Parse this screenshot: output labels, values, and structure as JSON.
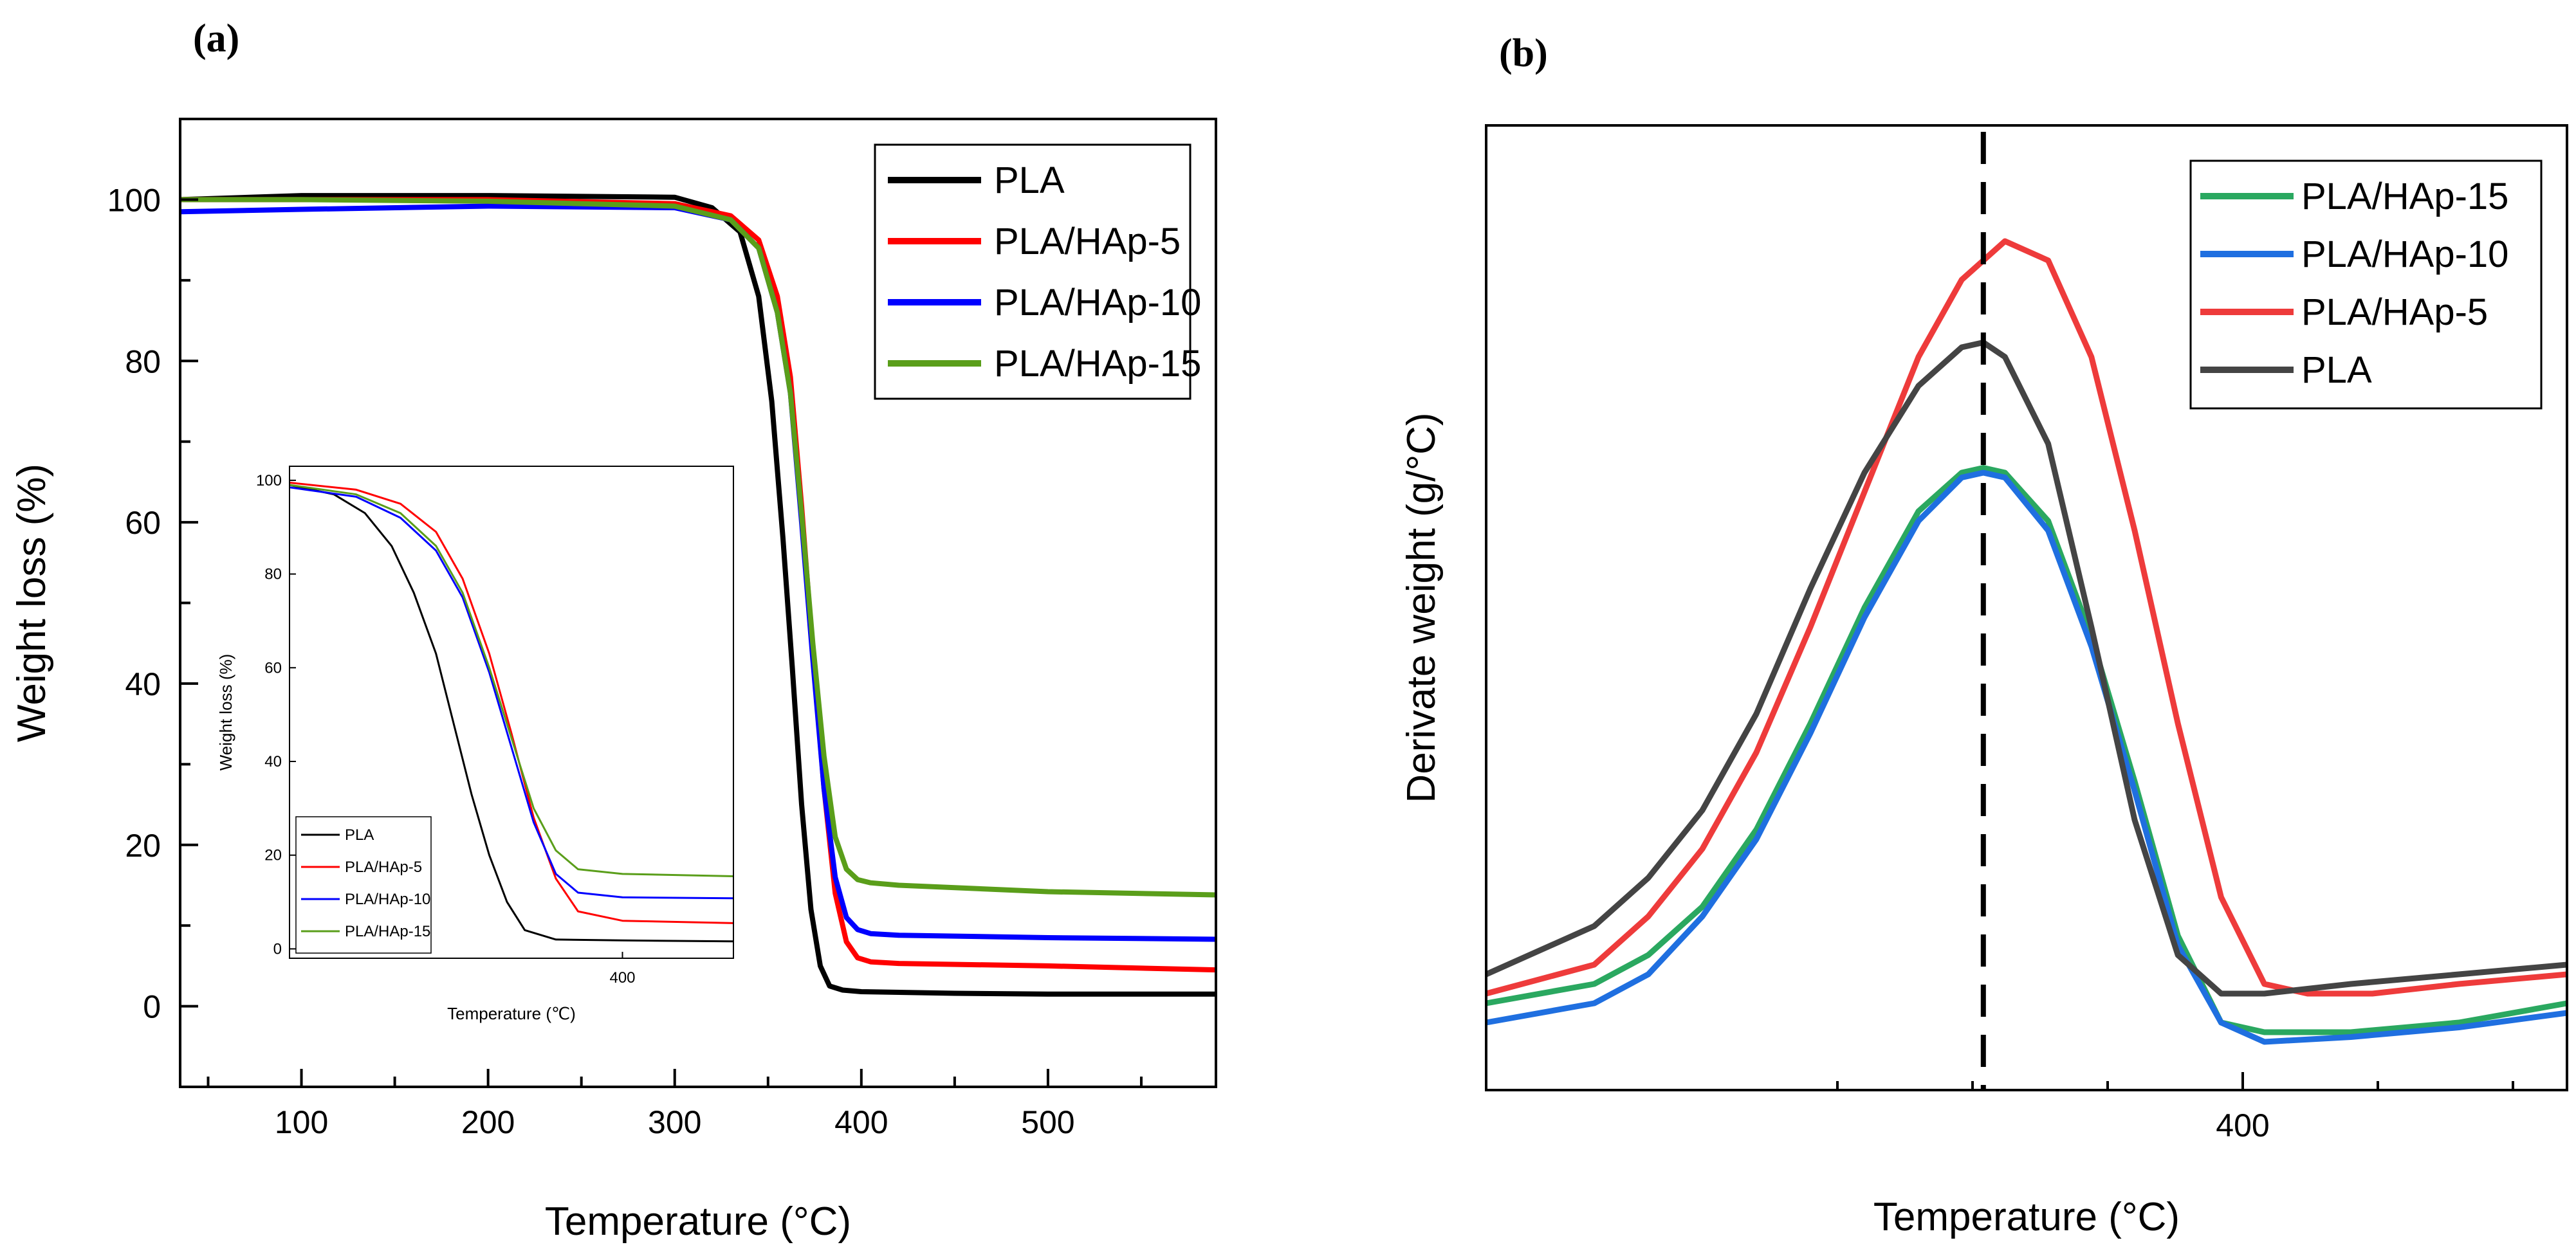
{
  "chart_data": [
    {
      "panel": "(a)",
      "type": "line",
      "title": "",
      "xlabel": "Temperature (°C)",
      "ylabel": "Weight loss (%)",
      "xlim": [
        35,
        590
      ],
      "ylim": [
        -10,
        110
      ],
      "xticks": [
        100,
        200,
        300,
        400,
        500
      ],
      "yticks": [
        0,
        20,
        40,
        60,
        80,
        100
      ],
      "grid": false,
      "legend": "top-right",
      "series": [
        {
          "name": "PLA",
          "color": "#000000",
          "x": [
            35,
            100,
            200,
            300,
            320,
            335,
            345,
            352,
            358,
            363,
            368,
            373,
            378,
            383,
            390,
            400,
            450,
            500,
            590
          ],
          "y": [
            100,
            100.5,
            100.5,
            100.3,
            99,
            96,
            88,
            75,
            58,
            42,
            25,
            12,
            5,
            2.5,
            2,
            1.8,
            1.6,
            1.5,
            1.5
          ]
        },
        {
          "name": "PLA/HAp-5",
          "color": "#ff0000",
          "x": [
            35,
            100,
            200,
            300,
            330,
            345,
            355,
            362,
            368,
            374,
            380,
            386,
            392,
            398,
            405,
            420,
            500,
            590
          ],
          "y": [
            100,
            100,
            100,
            99.5,
            98,
            95,
            88,
            78,
            62,
            44,
            27,
            14,
            8,
            6,
            5.5,
            5.3,
            5,
            4.5
          ]
        },
        {
          "name": "PLA/HAp-10",
          "color": "#0000ff",
          "x": [
            35,
            100,
            200,
            300,
            330,
            345,
            355,
            362,
            368,
            374,
            380,
            386,
            392,
            398,
            405,
            420,
            500,
            590
          ],
          "y": [
            98.5,
            98.8,
            99.2,
            99,
            97.5,
            94,
            86,
            76,
            60,
            43,
            27,
            16,
            11,
            9.5,
            9,
            8.8,
            8.5,
            8.3
          ]
        },
        {
          "name": "PLA/HAp-15",
          "color": "#5a9e1a",
          "x": [
            35,
            100,
            200,
            300,
            330,
            345,
            355,
            362,
            368,
            374,
            380,
            386,
            392,
            398,
            405,
            420,
            500,
            590
          ],
          "y": [
            100,
            100,
            99.8,
            99.2,
            97.5,
            94,
            86,
            76,
            61,
            45,
            31,
            21,
            17,
            15.7,
            15.3,
            15,
            14.2,
            13.8
          ]
        }
      ],
      "inset": {
        "type": "line",
        "xlabel": "Temperature (℃)",
        "ylabel": "Weight loss (%)",
        "xlim": [
          325,
          425
        ],
        "ylim": [
          -2,
          103
        ],
        "xticks": [
          400
        ],
        "yticks": [
          0,
          20,
          40,
          60,
          80,
          100
        ],
        "legend": "bottom-left",
        "series": [
          {
            "name": "PLA",
            "color": "#000000",
            "x": [
              325,
              335,
              342,
              348,
              353,
              358,
              362,
              366,
              370,
              374,
              378,
              385,
              400,
              425
            ],
            "y": [
              99,
              97,
              93,
              86,
              76,
              63,
              48,
              33,
              20,
              10,
              4,
              2,
              1.8,
              1.6
            ]
          },
          {
            "name": "PLA/HAp-5",
            "color": "#ff0000",
            "x": [
              325,
              340,
              350,
              358,
              364,
              370,
              375,
              380,
              385,
              390,
              400,
              425
            ],
            "y": [
              99.5,
              98,
              95,
              89,
              79,
              63,
              46,
              28,
              15,
              8,
              6,
              5.5
            ]
          },
          {
            "name": "PLA/HAp-10",
            "color": "#0000ff",
            "x": [
              325,
              340,
              350,
              358,
              364,
              370,
              375,
              380,
              385,
              390,
              400,
              425
            ],
            "y": [
              98.5,
              96.5,
              92,
              85,
              75,
              59,
              43,
              27,
              16,
              12,
              11,
              10.8
            ]
          },
          {
            "name": "PLA/HAp-15",
            "color": "#5a9e1a",
            "x": [
              325,
              340,
              350,
              358,
              364,
              370,
              375,
              380,
              385,
              390,
              400,
              425
            ],
            "y": [
              99,
              97,
              93,
              86,
              76,
              60,
              45,
              30,
              21,
              17,
              16,
              15.5
            ]
          }
        ]
      }
    },
    {
      "panel": "(b)",
      "type": "line",
      "title": "",
      "xlabel": "Temperature (°C)",
      "ylabel": "Derivate weight (g/°C)",
      "xlim": [
        330,
        430
      ],
      "ylim": [
        0,
        1
      ],
      "xticks": [
        400
      ],
      "yticks": [],
      "grid": false,
      "legend": "top-right",
      "reference_line_x": 376,
      "series": [
        {
          "name": "PLA/HAp-15",
          "color": "#2aa860",
          "x": [
            330,
            340,
            345,
            350,
            355,
            360,
            365,
            370,
            374,
            376,
            378,
            382,
            386,
            390,
            394,
            398,
            402,
            410,
            420,
            430
          ],
          "y": [
            0.09,
            0.11,
            0.14,
            0.19,
            0.27,
            0.38,
            0.5,
            0.6,
            0.64,
            0.645,
            0.64,
            0.59,
            0.47,
            0.32,
            0.16,
            0.07,
            0.06,
            0.06,
            0.07,
            0.09
          ]
        },
        {
          "name": "PLA/HAp-10",
          "color": "#1f6fe0",
          "x": [
            330,
            340,
            345,
            350,
            355,
            360,
            365,
            370,
            374,
            376,
            378,
            382,
            386,
            390,
            394,
            398,
            402,
            410,
            420,
            430
          ],
          "y": [
            0.07,
            0.09,
            0.12,
            0.18,
            0.26,
            0.37,
            0.49,
            0.59,
            0.635,
            0.64,
            0.635,
            0.58,
            0.46,
            0.31,
            0.15,
            0.07,
            0.05,
            0.055,
            0.065,
            0.08
          ]
        },
        {
          "name": "PLA/HAp-5",
          "color": "#ee3b3b",
          "x": [
            330,
            340,
            345,
            350,
            355,
            360,
            365,
            370,
            374,
            378,
            382,
            386,
            390,
            394,
            398,
            402,
            406,
            412,
            420,
            430
          ],
          "y": [
            0.1,
            0.13,
            0.18,
            0.25,
            0.35,
            0.48,
            0.62,
            0.76,
            0.84,
            0.88,
            0.86,
            0.76,
            0.58,
            0.38,
            0.2,
            0.11,
            0.1,
            0.1,
            0.11,
            0.12
          ]
        },
        {
          "name": "PLA",
          "color": "#444444",
          "x": [
            330,
            340,
            345,
            350,
            355,
            360,
            365,
            370,
            374,
            376,
            378,
            382,
            386,
            390,
            394,
            398,
            402,
            410,
            420,
            430
          ],
          "y": [
            0.12,
            0.17,
            0.22,
            0.29,
            0.39,
            0.52,
            0.64,
            0.73,
            0.77,
            0.775,
            0.76,
            0.67,
            0.48,
            0.28,
            0.14,
            0.1,
            0.1,
            0.11,
            0.12,
            0.13
          ]
        }
      ]
    }
  ]
}
